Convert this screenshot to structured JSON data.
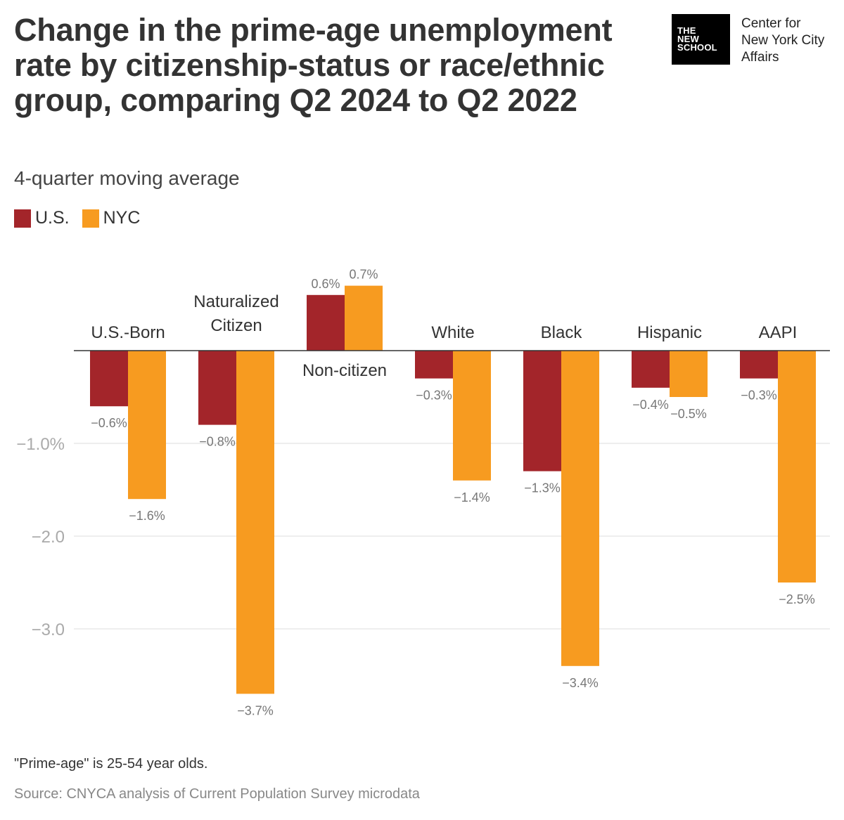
{
  "header": {
    "title": "Change in the prime-age unemployment rate by citizenship-status or race/ethnic group, comparing Q2 2024 to Q2 2022",
    "subtitle": "4-quarter moving average"
  },
  "logo": {
    "box_lines": [
      "THE",
      "NEW",
      "SCHOOL"
    ],
    "text_lines": [
      "Center for",
      "New York City",
      "Affairs"
    ]
  },
  "legend": [
    {
      "name": "U.S.",
      "color": "#A3252A"
    },
    {
      "name": "NYC",
      "color": "#F79B20"
    }
  ],
  "chart_data": {
    "type": "bar",
    "title": "Change in the prime-age unemployment rate by citizenship-status or race/ethnic group, comparing Q2 2024 to Q2 2022",
    "subtitle": "4-quarter moving average",
    "categories": [
      "U.S.-Born",
      "Naturalized Citizen",
      "Non-citizen",
      "White",
      "Black",
      "Hispanic",
      "AAPI"
    ],
    "series": [
      {
        "name": "U.S.",
        "color": "#A3252A",
        "values": [
          -0.6,
          -0.8,
          0.6,
          -0.3,
          -1.3,
          -0.4,
          -0.3
        ],
        "labels": [
          "−0.6%",
          "−0.8%",
          "0.6%",
          "−0.3%",
          "−1.3%",
          "−0.4%",
          "−0.3%"
        ]
      },
      {
        "name": "NYC",
        "color": "#F79B20",
        "values": [
          -1.6,
          -3.7,
          0.7,
          -1.4,
          -3.4,
          -0.5,
          -2.5
        ],
        "labels": [
          "−1.6%",
          "−3.7%",
          "0.7%",
          "−1.4%",
          "−3.4%",
          "−0.5%",
          "−2.5%"
        ]
      }
    ],
    "yticks": [
      -1,
      -2,
      -3
    ],
    "ytick_labels": [
      "−1.0%",
      "−2.0",
      "−3.0"
    ],
    "ylim": [
      -4.0,
      0.9
    ],
    "xlabel": "",
    "ylabel": ""
  },
  "footer": {
    "note": "\"Prime-age\" is 25-54 year olds.",
    "source": "Source: CNYCA analysis of Current Population Survey microdata"
  }
}
